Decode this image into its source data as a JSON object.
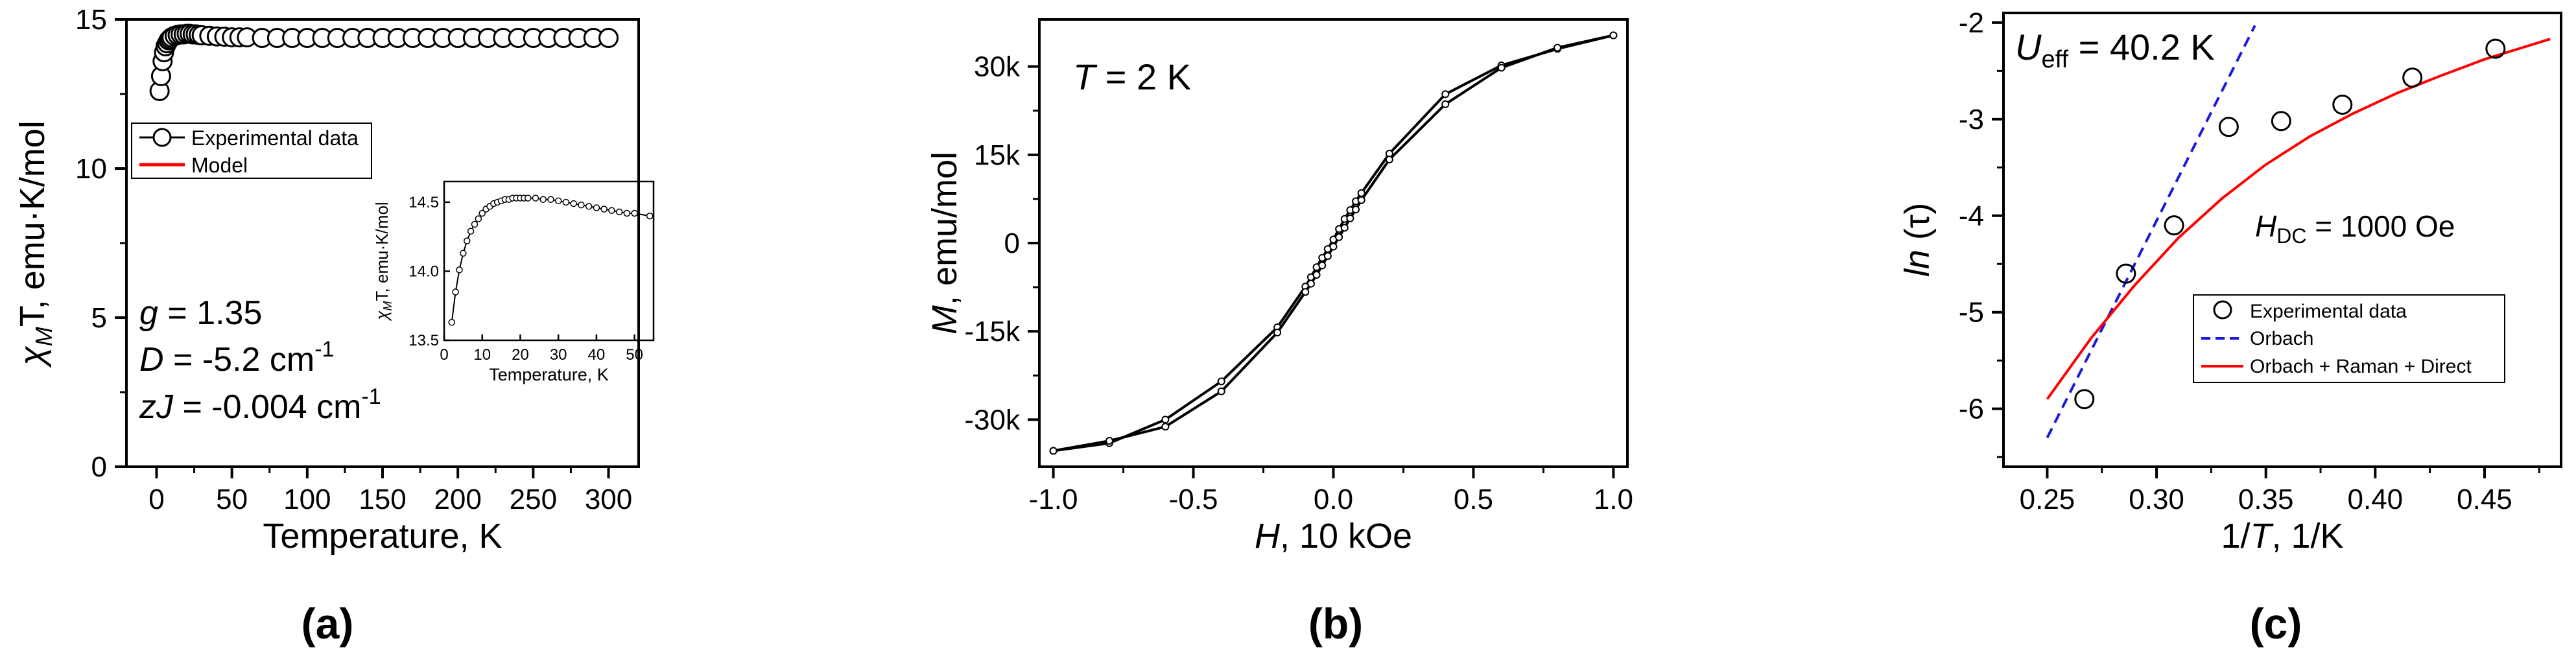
{
  "panels": [
    {
      "label": "(a)",
      "annotations": {
        "line1": "= 1.35",
        "line2": "= -5.2 cm",
        "line2_sup": "-1",
        "line3": "= -0.004 cm",
        "line3_sup": "-1"
      }
    },
    {
      "label": "(b)",
      "annotations": {
        "temperature_var": "T",
        "temperature_text": "= 2 K"
      }
    },
    {
      "label": "(c)",
      "annotations": {
        "ueff_var": "U",
        "ueff_sub": "eff",
        "ueff_text": "= 40.2 K",
        "hdc_var": "H",
        "hdc_sub": "DC",
        "hdc_text": "= 1000 Oe"
      }
    }
  ],
  "colors": {
    "model": "#ff0000",
    "orbach": "#1a1adc",
    "data": "#000000"
  },
  "chart_data": [
    {
      "type": "scatter",
      "panel": "a",
      "xlabel": "Temperature, K",
      "ylabel": "T, emu·K/mol",
      "ylabel_var": "χ",
      "ylabel_sub": "M",
      "xlim": [
        -20,
        320
      ],
      "ylim": [
        0,
        15
      ],
      "xticks": [
        0,
        50,
        100,
        150,
        200,
        250,
        300
      ],
      "yticks": [
        0,
        5,
        10,
        15
      ],
      "legend": {
        "position": "upper-left",
        "entries": [
          "Experimental data",
          "Model"
        ]
      },
      "series": [
        {
          "name": "Experimental data",
          "x": [
            2,
            3,
            4,
            5,
            6,
            7,
            8,
            9,
            10,
            12,
            14,
            16,
            18,
            20,
            22,
            24,
            26,
            28,
            30,
            35,
            40,
            45,
            50,
            55,
            60,
            70,
            80,
            90,
            100,
            110,
            120,
            130,
            140,
            150,
            160,
            170,
            180,
            190,
            200,
            210,
            220,
            230,
            240,
            250,
            260,
            270,
            280,
            290,
            300
          ],
          "y": [
            12.6,
            13.1,
            13.6,
            13.9,
            14.1,
            14.2,
            14.3,
            14.35,
            14.4,
            14.45,
            14.48,
            14.5,
            14.5,
            14.52,
            14.52,
            14.5,
            14.5,
            14.48,
            14.47,
            14.45,
            14.43,
            14.42,
            14.4,
            14.4,
            14.4,
            14.38,
            14.38,
            14.38,
            14.38,
            14.38,
            14.38,
            14.38,
            14.38,
            14.38,
            14.38,
            14.38,
            14.38,
            14.38,
            14.38,
            14.38,
            14.38,
            14.38,
            14.38,
            14.38,
            14.38,
            14.38,
            14.38,
            14.38,
            14.38
          ]
        },
        {
          "name": "Model",
          "x": [
            2,
            4,
            6,
            8,
            10,
            14,
            18,
            22,
            26,
            30,
            40,
            60,
            100,
            150,
            200,
            250,
            300
          ],
          "y": [
            12.9,
            13.7,
            14.1,
            14.3,
            14.4,
            14.47,
            14.5,
            14.5,
            14.49,
            14.47,
            14.43,
            14.4,
            14.38,
            14.38,
            14.38,
            14.38,
            14.38
          ]
        }
      ]
    },
    {
      "type": "line",
      "panel": "a-inset",
      "xlabel": "Temperature, K",
      "ylabel": "T, emu·K/mol",
      "ylabel_var": "χ",
      "ylabel_sub": "M",
      "xlim": [
        0,
        55
      ],
      "ylim": [
        13.5,
        14.65
      ],
      "xticks": [
        0,
        10,
        20,
        30,
        40,
        50
      ],
      "yticks": [
        13.5,
        14.0,
        14.5
      ],
      "ytick_labels": [
        "13.5",
        "14.0",
        "14.5"
      ],
      "series": [
        {
          "x": [
            2,
            3,
            4,
            5,
            6,
            7,
            8,
            9,
            10,
            11,
            12,
            13,
            14,
            15,
            16,
            17,
            18,
            19,
            20,
            21,
            22,
            24,
            26,
            28,
            30,
            32,
            34,
            36,
            38,
            40,
            42,
            44,
            46,
            48,
            50,
            54
          ],
          "y": [
            13.63,
            13.85,
            14.01,
            14.13,
            14.22,
            14.29,
            14.34,
            14.38,
            14.42,
            14.45,
            14.47,
            14.49,
            14.5,
            14.51,
            14.52,
            14.52,
            14.53,
            14.53,
            14.53,
            14.53,
            14.53,
            14.53,
            14.52,
            14.52,
            14.51,
            14.5,
            14.49,
            14.48,
            14.47,
            14.46,
            14.45,
            14.44,
            14.43,
            14.42,
            14.42,
            14.4
          ]
        }
      ]
    },
    {
      "type": "line",
      "panel": "b",
      "xlabel": ", 10 kOe",
      "xlabel_var": "H",
      "ylabel": ", emu/mol",
      "ylabel_var": "M",
      "xlim": [
        -1.05,
        1.05
      ],
      "ylim": [
        -38000,
        38000
      ],
      "xticks": [
        -1.0,
        -0.5,
        0.0,
        0.5,
        1.0
      ],
      "xtick_labels": [
        "-1.0",
        "-0.5",
        "0.0",
        "0.5",
        "1.0"
      ],
      "yticks": [
        -30000,
        -15000,
        0,
        15000,
        30000
      ],
      "ytick_labels": [
        "-30k",
        "-15k",
        "0",
        "15k",
        "30k"
      ],
      "series": [
        {
          "name": "descending",
          "x": [
            1.0,
            0.8,
            0.6,
            0.4,
            0.2,
            0.1,
            0.08,
            0.06,
            0.04,
            0.02,
            0.0,
            -0.02,
            -0.04,
            -0.06,
            -0.08,
            -0.1,
            -0.2,
            -0.4,
            -0.6,
            -0.8,
            -1.0
          ],
          "y": [
            35300,
            33000,
            30200,
            25300,
            15200,
            8500,
            7100,
            5600,
            4100,
            2400,
            600,
            -1000,
            -2500,
            -4100,
            -5800,
            -7400,
            -14300,
            -23500,
            -30000,
            -34000,
            -35300
          ]
        },
        {
          "name": "ascending",
          "x": [
            -1.0,
            -0.8,
            -0.6,
            -0.4,
            -0.2,
            -0.1,
            -0.08,
            -0.06,
            -0.04,
            -0.02,
            0.0,
            0.02,
            0.04,
            0.06,
            0.08,
            0.1,
            0.2,
            0.4,
            0.6,
            0.8,
            1.0
          ],
          "y": [
            -35300,
            -33600,
            -31200,
            -25200,
            -15200,
            -8300,
            -6900,
            -5400,
            -3800,
            -2200,
            -600,
            1000,
            2600,
            4200,
            5700,
            7300,
            14200,
            23600,
            29800,
            33200,
            35300
          ]
        }
      ]
    },
    {
      "type": "scatter",
      "panel": "c",
      "xlabel": ", 1/K",
      "xlabel_pre": "1/",
      "xlabel_var": "T",
      "ylabel_var": "ln",
      "ylabel": "(τ)",
      "xlim": [
        0.23,
        0.485
      ],
      "ylim": [
        -6.6,
        -1.9
      ],
      "xticks": [
        0.25,
        0.3,
        0.35,
        0.4,
        0.45
      ],
      "xtick_labels": [
        "0.25",
        "0.30",
        "0.35",
        "0.40",
        "0.45"
      ],
      "yticks": [
        -6,
        -5,
        -4,
        -3,
        -2
      ],
      "ytick_labels": [
        "-6",
        "-5",
        "-4",
        "-3",
        "-2"
      ],
      "legend": {
        "position": "lower-right",
        "entries": [
          "Experimental data",
          "Orbach",
          "Orbach + Raman + Direct"
        ]
      },
      "series": [
        {
          "name": "Experimental data",
          "x": [
            0.267,
            0.286,
            0.308,
            0.333,
            0.357,
            0.385,
            0.417,
            0.455
          ],
          "y": [
            -5.9,
            -4.6,
            -4.1,
            -3.08,
            -3.02,
            -2.85,
            -2.57,
            -2.27
          ]
        },
        {
          "name": "Orbach",
          "x": [
            0.25,
            0.345
          ],
          "y": [
            -6.3,
            -2.03
          ]
        },
        {
          "name": "Orbach + Raman + Direct",
          "x": [
            0.25,
            0.27,
            0.29,
            0.31,
            0.33,
            0.35,
            0.37,
            0.39,
            0.41,
            0.43,
            0.45,
            0.47,
            0.48
          ],
          "y": [
            -5.9,
            -5.27,
            -4.72,
            -4.23,
            -3.82,
            -3.47,
            -3.18,
            -2.94,
            -2.73,
            -2.55,
            -2.38,
            -2.24,
            -2.17
          ]
        }
      ]
    }
  ]
}
